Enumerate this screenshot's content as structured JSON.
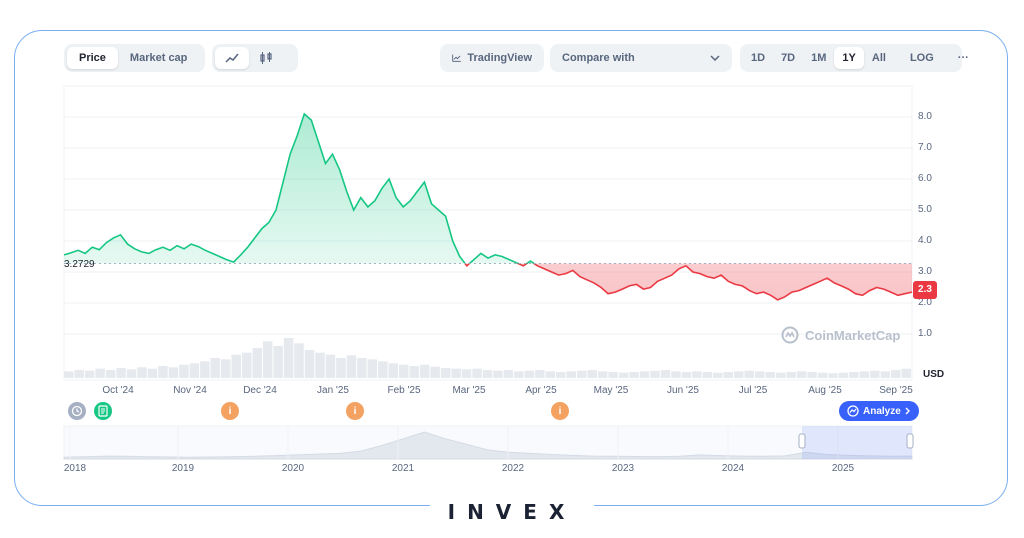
{
  "toolbar": {
    "price_label": "Price",
    "market_cap_label": "Market cap",
    "tradingview_label": "TradingView",
    "compare_label": "Compare with",
    "ranges": [
      "1D",
      "7D",
      "1M",
      "1Y",
      "All"
    ],
    "active_range": "1Y",
    "log_label": "LOG",
    "more_label": "···"
  },
  "chart_data": {
    "type": "area",
    "reference_value": 3.2729,
    "reference_label": "3.2729",
    "current_value_label": "2.3",
    "y_axis_unit": "USD",
    "ylim": [
      0,
      9
    ],
    "yticks": [
      "1.0",
      "2.0",
      "3.0",
      "4.0",
      "5.0",
      "6.0",
      "7.0",
      "8.0"
    ],
    "x_ticks": [
      "Oct '24",
      "Nov '24",
      "Dec '24",
      "Jan '25",
      "Feb '25",
      "Mar '25",
      "Apr '25",
      "May '25",
      "Jun '25",
      "Jul '25",
      "Aug '25",
      "Sep '25"
    ],
    "series": [
      {
        "values": [
          3.55,
          3.62,
          3.7,
          3.6,
          3.8,
          3.72,
          3.95,
          4.1,
          4.2,
          3.9,
          3.75,
          3.65,
          3.6,
          3.72,
          3.8,
          3.7,
          3.85,
          3.75,
          3.9,
          3.82,
          3.7,
          3.6,
          3.5,
          3.4,
          3.32,
          3.55,
          3.8,
          4.1,
          4.4,
          4.6,
          5.0,
          5.9,
          6.8,
          7.4,
          8.1,
          7.9,
          7.2,
          6.5,
          6.8,
          6.3,
          5.6,
          5.0,
          5.4,
          5.1,
          5.3,
          5.7,
          6.0,
          5.4,
          5.1,
          5.3,
          5.6,
          5.9,
          5.2,
          5.0,
          4.8,
          4.0,
          3.5,
          3.2,
          3.4,
          3.6,
          3.45,
          3.55,
          3.5,
          3.4,
          3.3,
          3.2,
          3.35,
          3.2,
          3.1,
          3.0,
          2.9,
          2.95,
          3.05,
          2.85,
          2.75,
          2.65,
          2.5,
          2.3,
          2.35,
          2.45,
          2.55,
          2.6,
          2.45,
          2.5,
          2.7,
          2.8,
          2.9,
          3.1,
          3.2,
          3.0,
          2.95,
          2.85,
          2.8,
          2.9,
          2.7,
          2.6,
          2.55,
          2.4,
          2.3,
          2.35,
          2.25,
          2.1,
          2.2,
          2.35,
          2.4,
          2.5,
          2.6,
          2.7,
          2.8,
          2.65,
          2.55,
          2.45,
          2.3,
          2.25,
          2.4,
          2.5,
          2.45,
          2.35,
          2.25,
          2.3,
          2.35
        ]
      }
    ],
    "volume": [
      10,
      12,
      11,
      14,
      12,
      15,
      13,
      16,
      14,
      18,
      16,
      20,
      22,
      25,
      30,
      28,
      35,
      38,
      45,
      55,
      48,
      60,
      52,
      42,
      38,
      35,
      30,
      34,
      30,
      28,
      25,
      22,
      20,
      18,
      20,
      17,
      15,
      14,
      13,
      14,
      12,
      11,
      12,
      10,
      11,
      12,
      10,
      9,
      10,
      11,
      12,
      10,
      9,
      8,
      9,
      10,
      11,
      12,
      10,
      9,
      10,
      9,
      8,
      9,
      10,
      11,
      10,
      9,
      8,
      9,
      10,
      9,
      8,
      7,
      8,
      9,
      10,
      11,
      10,
      12,
      14
    ],
    "navigator": {
      "x_ticks": [
        "2018",
        "2019",
        "2020",
        "2021",
        "2022",
        "2023",
        "2024",
        "2025"
      ],
      "values": [
        0.8,
        1.0,
        1.3,
        1.2,
        1.0,
        0.9,
        0.8,
        0.9,
        1.0,
        1.2,
        1.5,
        1.8,
        2.2,
        2.5,
        3.5,
        6.0,
        9.0,
        12.0,
        9.0,
        6.5,
        4.0,
        3.0,
        2.5,
        2.0,
        1.6,
        1.3,
        1.2,
        1.1,
        1.0,
        1.2,
        1.8,
        1.5,
        1.3,
        1.2,
        1.4,
        3.0,
        2.0,
        1.6,
        1.4,
        1.2,
        1.3
      ]
    }
  },
  "markers": {
    "analyze_label": "Analyze",
    "event_glyph": "i"
  },
  "watermark": {
    "text": "CoinMarketCap"
  },
  "brand": {
    "text": "INVEX"
  },
  "colors": {
    "up": "#16c784",
    "down": "#ea3943",
    "accent": "#3861fb",
    "event": "#f4a261"
  }
}
